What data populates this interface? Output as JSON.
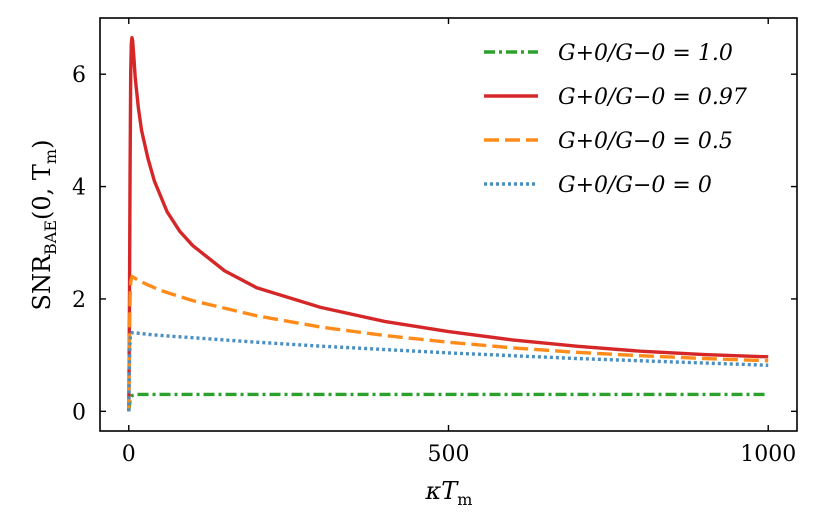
{
  "chart_data": {
    "type": "line",
    "xlabel_main": "κT",
    "xlabel_sub": "m",
    "ylabel_main": "SNR",
    "ylabel_sub": "BAE",
    "ylabel_args": "(0, T",
    "ylabel_args_sub": "m",
    "ylabel_close": ")",
    "xlim": [
      -45,
      1045
    ],
    "ylim": [
      -0.35,
      7.0
    ],
    "xticks": [
      0,
      500,
      1000
    ],
    "xtick_labels": [
      "0",
      "500",
      "1000"
    ],
    "yticks": [
      0,
      2,
      4,
      6
    ],
    "ytick_labels": [
      "0",
      "2",
      "4",
      "6"
    ],
    "legend_position": "top-right",
    "series": [
      {
        "name": "G+0/G−0 = 1.0",
        "label_text": "G+0/G−0 = 1.0",
        "color": "#2ca02c",
        "dash": "dashdot",
        "x": [
          0,
          1,
          2,
          3,
          5,
          8,
          12,
          20,
          50,
          100,
          200,
          300,
          400,
          500,
          600,
          700,
          800,
          900,
          1000
        ],
        "y": [
          0.0,
          0.1,
          0.2,
          0.25,
          0.28,
          0.29,
          0.3,
          0.3,
          0.3,
          0.3,
          0.3,
          0.3,
          0.3,
          0.3,
          0.3,
          0.3,
          0.3,
          0.3,
          0.3
        ]
      },
      {
        "name": "G+0/G−0 = 0.97",
        "label_text": "G+0/G−0 = 0.97",
        "color": "#d62728",
        "dash": "solid",
        "x": [
          0,
          1,
          2,
          3,
          4,
          5,
          6,
          8,
          10,
          15,
          20,
          30,
          40,
          60,
          80,
          100,
          150,
          200,
          300,
          400,
          500,
          600,
          700,
          800,
          900,
          1000
        ],
        "y": [
          0.0,
          1.7,
          4.2,
          6.0,
          6.55,
          6.65,
          6.6,
          6.3,
          5.95,
          5.4,
          5.0,
          4.5,
          4.1,
          3.55,
          3.2,
          2.95,
          2.5,
          2.2,
          1.85,
          1.6,
          1.42,
          1.27,
          1.16,
          1.07,
          1.01,
          0.97
        ]
      },
      {
        "name": "G+0/G−0 = 0.5",
        "label_text": "G+0/G−0 = 0.5",
        "color": "#ff8c1a",
        "dash": "dashed",
        "x": [
          0,
          1,
          2,
          3,
          5,
          8,
          15,
          30,
          50,
          100,
          200,
          300,
          400,
          500,
          600,
          700,
          800,
          900,
          1000
        ],
        "y": [
          0.0,
          1.2,
          2.0,
          2.3,
          2.4,
          2.38,
          2.33,
          2.25,
          2.15,
          1.97,
          1.7,
          1.5,
          1.35,
          1.23,
          1.13,
          1.05,
          0.99,
          0.94,
          0.9
        ]
      },
      {
        "name": "G+0/G−0 = 0",
        "label_text": "G+0/G−0 = 0",
        "color": "#4a8fc0",
        "dash": "dotted",
        "x": [
          0,
          1,
          2,
          3,
          5,
          8,
          15,
          30,
          50,
          100,
          200,
          300,
          400,
          500,
          600,
          700,
          800,
          900,
          1000
        ],
        "y": [
          0.0,
          0.8,
          1.25,
          1.38,
          1.4,
          1.4,
          1.39,
          1.37,
          1.35,
          1.31,
          1.23,
          1.16,
          1.1,
          1.04,
          0.99,
          0.94,
          0.9,
          0.86,
          0.82
        ]
      }
    ]
  }
}
